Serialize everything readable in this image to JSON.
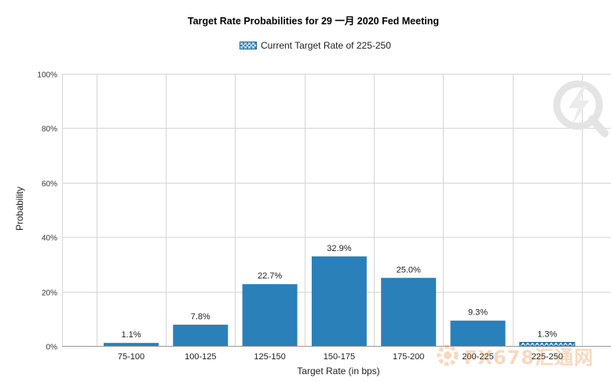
{
  "chart_data": {
    "type": "bar",
    "title": "Target Rate Probabilities for 29 一月 2020  Fed Meeting",
    "xlabel": "Target Rate (in bps)",
    "ylabel": "Probability",
    "ylim": [
      0,
      100
    ],
    "yticks": [
      0,
      20,
      40,
      60,
      80,
      100
    ],
    "ytick_labels": [
      "0%",
      "20%",
      "40%",
      "60%",
      "80%",
      "100%"
    ],
    "categories": [
      "75-100",
      "100-125",
      "125-150",
      "150-175",
      "175-200",
      "200-225",
      "225-250"
    ],
    "values": [
      1.1,
      7.8,
      22.7,
      32.9,
      25.0,
      9.3,
      1.3
    ],
    "data_labels": [
      "1.1%",
      "7.8%",
      "22.7%",
      "32.9%",
      "25.0%",
      "9.3%",
      "1.3%"
    ],
    "highlighted_category": "225-250",
    "legend": {
      "label": "Current Target Rate of 225-250",
      "position": "top-center"
    },
    "grid": true,
    "colors": {
      "bar": "#2a80b9",
      "grid": "#d6d6d6",
      "axis": "#999999",
      "highlight_pattern": "#ffffff"
    }
  },
  "watermarks": {
    "site_text": "FX678汇通网",
    "q_icon": "lightning-q-logo-icon"
  }
}
